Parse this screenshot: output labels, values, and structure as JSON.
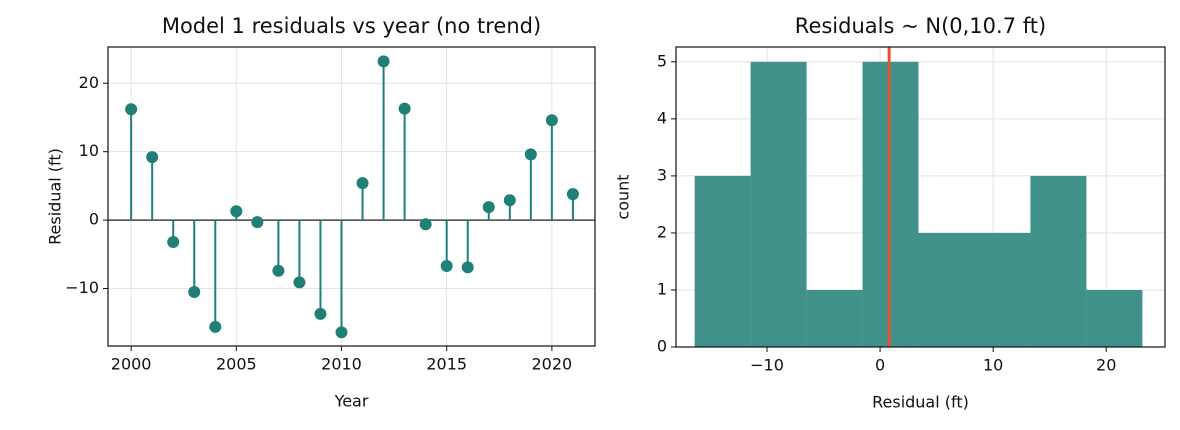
{
  "chart_data": [
    {
      "type": "stem",
      "title": "Model 1 residuals vs year (no trend)",
      "x_label": "Year",
      "y_label": "Residual (ft)",
      "x": [
        2000,
        2001,
        2002,
        2003,
        2004,
        2005,
        2006,
        2007,
        2008,
        2009,
        2010,
        2011,
        2012,
        2013,
        2014,
        2015,
        2016,
        2017,
        2018,
        2019,
        2020,
        2021
      ],
      "values": [
        16.2,
        9.2,
        -3.2,
        -10.5,
        -15.6,
        1.3,
        -0.3,
        -7.4,
        -9.1,
        -13.7,
        -16.4,
        5.4,
        23.2,
        16.3,
        -0.6,
        -6.7,
        -6.9,
        1.9,
        2.9,
        9.6,
        14.6,
        3.8
      ],
      "color": "#1f8078",
      "baseline_color": "#444444",
      "xlim": [
        1998.9,
        2022.05
      ],
      "xticks": [
        2000,
        2005,
        2010,
        2015,
        2020
      ],
      "ylim": [
        -18.4,
        25.3
      ],
      "yticks": [
        {
          "value": -10,
          "label": "−10"
        },
        0,
        10,
        20
      ],
      "grid": true
    },
    {
      "type": "histogram",
      "title": "Residuals ~ N(0,10.7 ft)",
      "x_label": "Residual (ft)",
      "y_label": "count",
      "bins": [
        -16.4,
        -11.45,
        -6.5,
        -1.55,
        3.4,
        8.35,
        13.3,
        18.25,
        23.2
      ],
      "counts": [
        3,
        5,
        1,
        5,
        2,
        2,
        3,
        1
      ],
      "color": "#3f9189",
      "vline": 0.8,
      "vline_color": "#e0552a",
      "xlim": [
        -18.05,
        25.2
      ],
      "xticks": [
        {
          "value": -10,
          "label": "−10"
        },
        0,
        10,
        20
      ],
      "ylim": [
        0,
        5.26
      ],
      "yticks": [
        0,
        1,
        2,
        3,
        4,
        5
      ],
      "grid": true
    }
  ]
}
